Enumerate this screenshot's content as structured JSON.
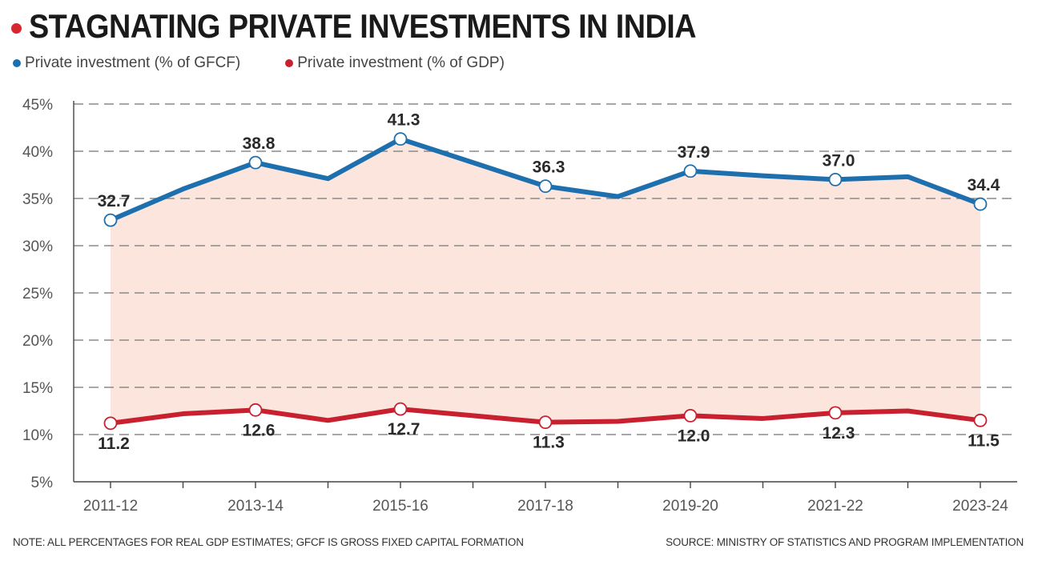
{
  "title": "STAGNATING PRIVATE INVESTMENTS IN INDIA",
  "colors": {
    "accent_red": "#d7262e",
    "series_blue": "#1d6fae",
    "series_red": "#c8202e",
    "fill": "#fbe5dd",
    "grid": "#8a8a8a"
  },
  "legend": [
    {
      "label": "Private investment (% of GFCF)",
      "color": "#1d6fae"
    },
    {
      "label": "Private investment (% of GDP)",
      "color": "#c8202e"
    }
  ],
  "footer": {
    "note": "NOTE: ALL PERCENTAGES FOR REAL GDP ESTIMATES; GFCF IS GROSS FIXED CAPITAL FORMATION",
    "source": "SOURCE: MINISTRY OF STATISTICS AND PROGRAM IMPLEMENTATION"
  },
  "chart_data": {
    "type": "line",
    "title": "STAGNATING PRIVATE INVESTMENTS IN INDIA",
    "xlabel": "",
    "ylabel": "",
    "ylim": [
      5,
      45
    ],
    "yticks": [
      5,
      10,
      15,
      20,
      25,
      30,
      35,
      40,
      45
    ],
    "ytick_labels": [
      "5%",
      "10%",
      "15%",
      "20%",
      "25%",
      "30%",
      "35%",
      "40%",
      "45%"
    ],
    "grid": true,
    "legend_position": "top-left",
    "categories": [
      "2011-12",
      "2012-13",
      "2013-14",
      "2014-15",
      "2015-16",
      "2016-17",
      "2017-18",
      "2018-19",
      "2019-20",
      "2020-21",
      "2021-22",
      "2022-23",
      "2023-24"
    ],
    "tick_labels": [
      "2011-12",
      "",
      "2013-14",
      "",
      "2015-16",
      "",
      "2017-18",
      "",
      "2019-20",
      "",
      "2021-22",
      "",
      "2023-24"
    ],
    "series": [
      {
        "name": "Private investment (% of GFCF)",
        "values": [
          32.7,
          36.0,
          38.8,
          37.1,
          41.3,
          38.8,
          36.3,
          35.2,
          37.9,
          37.4,
          37.0,
          37.3,
          34.4
        ],
        "labels": [
          "32.7",
          "",
          "38.8",
          "",
          "41.3",
          "",
          "36.3",
          "",
          "37.9",
          "",
          "37.0",
          "",
          "34.4"
        ]
      },
      {
        "name": "Private investment (% of GDP)",
        "values": [
          11.2,
          12.2,
          12.6,
          11.5,
          12.7,
          12.0,
          11.3,
          11.4,
          12.0,
          11.7,
          12.3,
          12.5,
          11.5
        ],
        "labels": [
          "11.2",
          "",
          "12.6",
          "",
          "12.7",
          "",
          "11.3",
          "",
          "12.0",
          "",
          "12.3",
          "",
          "11.5"
        ]
      }
    ]
  }
}
